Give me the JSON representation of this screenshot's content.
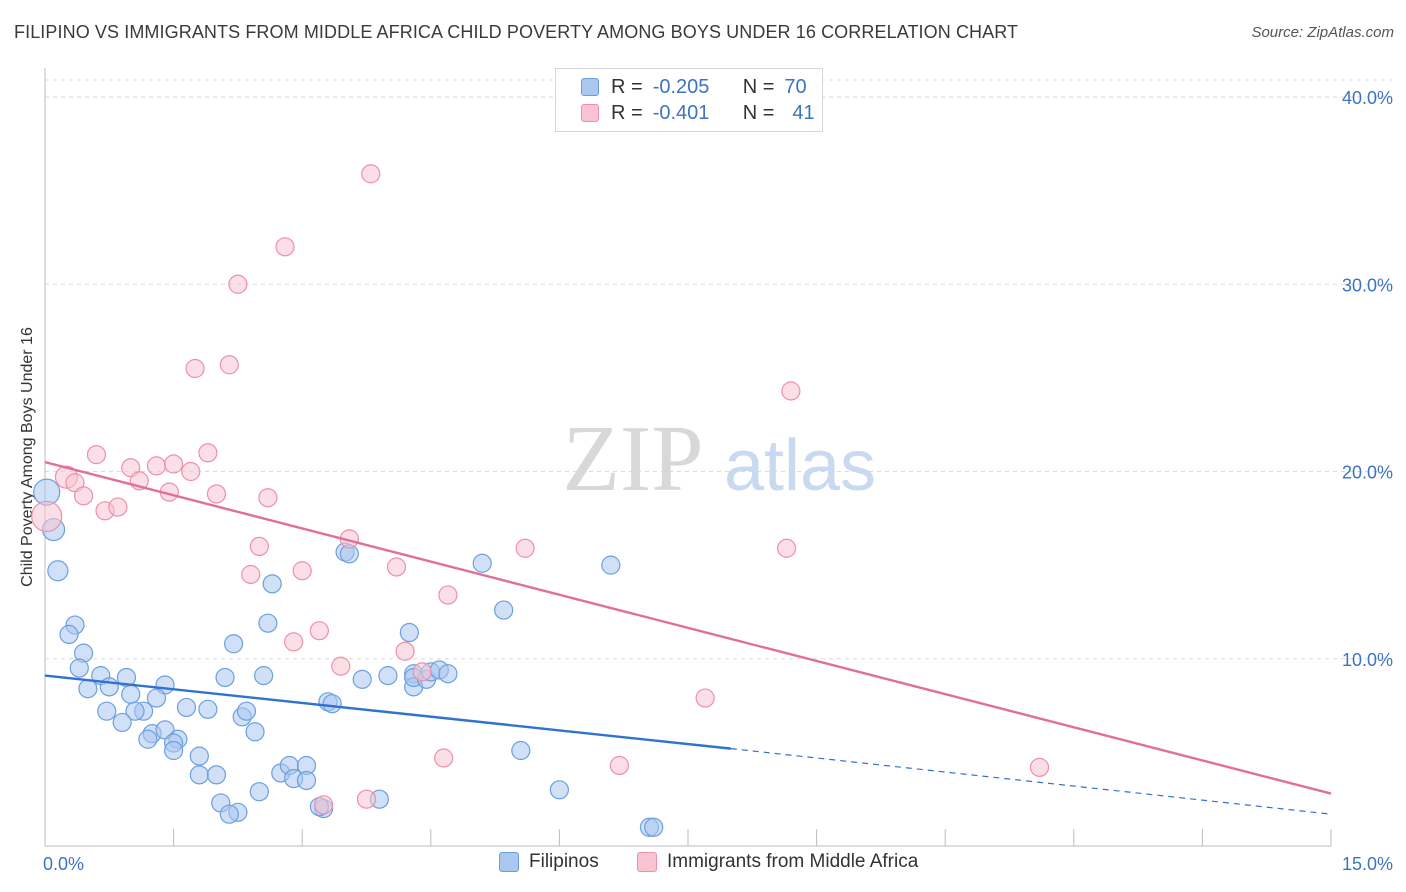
{
  "header": {
    "title": "FILIPINO VS IMMIGRANTS FROM MIDDLE AFRICA CHILD POVERTY AMONG BOYS UNDER 16 CORRELATION CHART",
    "source": "Source: ZipAtlas.com"
  },
  "watermark": {
    "zip": "ZIP",
    "atlas": "atlas"
  },
  "legend": {
    "rows": [
      {
        "r_label": "R =",
        "r_value": "-0.205",
        "n_label": "N =",
        "n_value": "70",
        "color": "#a9c7ef",
        "border": "#6d9fe0"
      },
      {
        "r_label": "R =",
        "r_value": "-0.401",
        "n_label": "N =",
        "n_value": "41",
        "color": "#f8c4d2",
        "border": "#ee8fab"
      }
    ]
  },
  "bottom_legend": {
    "items": [
      {
        "label": "Filipinos",
        "color": "#a9c7ef",
        "border": "#6d9fe0"
      },
      {
        "label": "Immigrants from Middle Africa",
        "color": "#f8c4d2",
        "border": "#ee8fab"
      }
    ]
  },
  "chart_data": {
    "type": "scatter",
    "title": "FILIPINO VS IMMIGRANTS FROM MIDDLE AFRICA CHILD POVERTY AMONG BOYS UNDER 16 CORRELATION CHART",
    "xlabel": "",
    "ylabel": "Child Poverty Among Boys Under 16",
    "xlim": [
      0,
      15
    ],
    "ylim": [
      0,
      40
    ],
    "x_tick_labels": [
      "0.0%",
      "15.0%"
    ],
    "y_ticks": [
      10,
      20,
      30,
      40
    ],
    "y_tick_labels": [
      "10.0%",
      "20.0%",
      "30.0%",
      "40.0%"
    ],
    "grid": true,
    "series": [
      {
        "name": "Filipinos",
        "color": "#6d9fe0",
        "fill": "#a9c7ef",
        "line_color": "#2f72d0",
        "trend": {
          "x0": 0,
          "y0": 9.1,
          "x1": 8.0,
          "y1": 5.2,
          "dashed_to_x": 15,
          "dashed_to_y": 1.7
        },
        "points": [
          [
            0.02,
            18.9,
            13
          ],
          [
            0.1,
            16.9,
            11
          ],
          [
            0.15,
            14.7,
            10
          ],
          [
            0.35,
            11.8,
            9
          ],
          [
            0.28,
            11.3,
            9
          ],
          [
            0.45,
            10.3,
            9
          ],
          [
            0.4,
            9.5,
            9
          ],
          [
            0.65,
            9.1,
            9
          ],
          [
            0.95,
            9.0,
            9
          ],
          [
            0.5,
            8.4,
            9
          ],
          [
            0.75,
            8.5,
            9
          ],
          [
            1.4,
            8.6,
            9
          ],
          [
            1.0,
            8.1,
            9
          ],
          [
            1.3,
            7.9,
            9
          ],
          [
            0.72,
            7.2,
            9
          ],
          [
            1.15,
            7.2,
            9
          ],
          [
            1.05,
            7.2,
            9
          ],
          [
            0.9,
            6.6,
            9
          ],
          [
            1.25,
            6.0,
            9
          ],
          [
            1.4,
            6.2,
            9
          ],
          [
            1.2,
            5.7,
            9
          ],
          [
            1.55,
            5.7,
            9
          ],
          [
            1.5,
            5.5,
            9
          ],
          [
            1.5,
            5.1,
            9
          ],
          [
            1.8,
            4.8,
            9
          ],
          [
            1.9,
            7.3,
            9
          ],
          [
            1.65,
            7.4,
            9
          ],
          [
            2.2,
            10.8,
            9
          ],
          [
            2.1,
            9.0,
            9
          ],
          [
            2.55,
            9.1,
            9
          ],
          [
            2.3,
            6.9,
            9
          ],
          [
            2.35,
            7.2,
            9
          ],
          [
            2.45,
            6.1,
            9
          ],
          [
            2.6,
            11.9,
            9
          ],
          [
            2.65,
            14.0,
            9
          ],
          [
            1.8,
            3.8,
            9
          ],
          [
            2.0,
            3.8,
            9
          ],
          [
            2.05,
            2.3,
            9
          ],
          [
            2.25,
            1.8,
            9
          ],
          [
            2.5,
            2.9,
            9
          ],
          [
            2.75,
            3.9,
            9
          ],
          [
            2.85,
            4.3,
            9
          ],
          [
            2.9,
            3.6,
            9
          ],
          [
            3.05,
            4.3,
            9
          ],
          [
            3.05,
            3.5,
            9
          ],
          [
            3.25,
            2.0,
            9
          ],
          [
            3.2,
            2.1,
            9
          ],
          [
            3.3,
            7.7,
            9
          ],
          [
            3.35,
            7.6,
            9
          ],
          [
            3.5,
            15.7,
            9
          ],
          [
            3.55,
            15.6,
            9
          ],
          [
            3.7,
            8.9,
            9
          ],
          [
            4.0,
            9.1,
            9
          ],
          [
            3.9,
            2.5,
            9
          ],
          [
            4.25,
            11.4,
            9
          ],
          [
            4.3,
            9.2,
            9
          ],
          [
            4.3,
            8.5,
            9
          ],
          [
            4.3,
            9.0,
            9
          ],
          [
            4.45,
            8.9,
            9
          ],
          [
            4.5,
            9.3,
            9
          ],
          [
            4.6,
            9.4,
            9
          ],
          [
            5.1,
            15.1,
            9
          ],
          [
            5.35,
            12.6,
            9
          ],
          [
            5.55,
            5.1,
            9
          ],
          [
            6.0,
            3.0,
            9
          ],
          [
            6.6,
            15.0,
            9
          ],
          [
            7.05,
            1.0,
            9
          ],
          [
            7.1,
            1.0,
            9
          ],
          [
            2.15,
            1.7,
            9
          ],
          [
            4.7,
            9.2,
            9
          ]
        ]
      },
      {
        "name": "Immigrants from Middle Africa",
        "color": "#ee8fab",
        "fill": "#f8c4d2",
        "line_color": "#e0709b",
        "trend": {
          "x0": 0,
          "y0": 20.5,
          "x1": 15,
          "y1": 2.8
        },
        "points": [
          [
            0.02,
            17.6,
            15
          ],
          [
            0.25,
            19.7,
            11
          ],
          [
            0.35,
            19.4,
            9
          ],
          [
            0.45,
            18.7,
            9
          ],
          [
            0.6,
            20.9,
            9
          ],
          [
            0.7,
            17.9,
            9
          ],
          [
            0.85,
            18.1,
            9
          ],
          [
            1.0,
            20.2,
            9
          ],
          [
            1.1,
            19.5,
            9
          ],
          [
            1.3,
            20.3,
            9
          ],
          [
            1.45,
            18.9,
            9
          ],
          [
            1.5,
            20.4,
            9
          ],
          [
            1.7,
            20.0,
            9
          ],
          [
            1.75,
            25.5,
            9
          ],
          [
            1.9,
            21.0,
            9
          ],
          [
            2.0,
            18.8,
            9
          ],
          [
            2.15,
            25.7,
            9
          ],
          [
            2.25,
            30.0,
            9
          ],
          [
            2.4,
            14.5,
            9
          ],
          [
            2.5,
            16.0,
            9
          ],
          [
            2.6,
            18.6,
            9
          ],
          [
            2.8,
            32.0,
            9
          ],
          [
            2.9,
            10.9,
            9
          ],
          [
            3.0,
            14.7,
            9
          ],
          [
            3.2,
            11.5,
            9
          ],
          [
            3.45,
            9.6,
            9
          ],
          [
            3.55,
            16.4,
            9
          ],
          [
            3.75,
            2.5,
            9
          ],
          [
            3.8,
            35.9,
            9
          ],
          [
            4.1,
            14.9,
            9
          ],
          [
            4.2,
            10.4,
            9
          ],
          [
            4.4,
            9.3,
            9
          ],
          [
            4.65,
            4.7,
            9
          ],
          [
            4.7,
            13.4,
            9
          ],
          [
            5.6,
            15.9,
            9
          ],
          [
            6.7,
            4.3,
            9
          ],
          [
            7.7,
            7.9,
            9
          ],
          [
            8.7,
            24.3,
            9
          ],
          [
            8.65,
            15.9,
            9
          ],
          [
            11.6,
            4.2,
            9
          ],
          [
            3.25,
            2.2,
            9
          ]
        ]
      }
    ]
  }
}
